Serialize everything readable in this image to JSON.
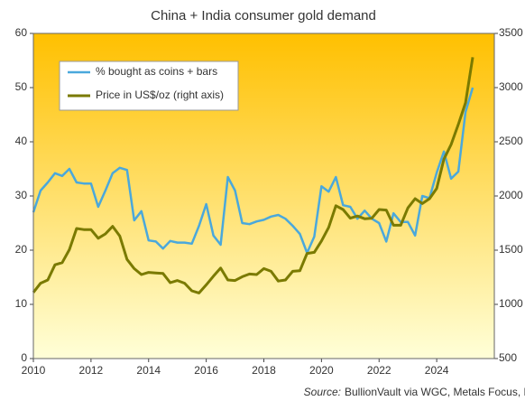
{
  "chart_data": {
    "type": "line",
    "title": "China + India consumer gold demand",
    "source_label": "Source:",
    "source_text": "BullionVault via WGC, Metals Focus, LBMA",
    "x": [
      2010,
      2010.25,
      2010.5,
      2010.75,
      2011,
      2011.25,
      2011.5,
      2011.75,
      2012,
      2012.25,
      2012.5,
      2012.75,
      2013,
      2013.25,
      2013.5,
      2013.75,
      2014,
      2014.25,
      2014.5,
      2014.75,
      2015,
      2015.25,
      2015.5,
      2015.75,
      2016,
      2016.25,
      2016.5,
      2016.75,
      2017,
      2017.25,
      2017.5,
      2017.75,
      2018,
      2018.25,
      2018.5,
      2018.75,
      2019,
      2019.25,
      2019.5,
      2019.75,
      2020,
      2020.25,
      2020.5,
      2020.75,
      2021,
      2021.25,
      2021.5,
      2021.75,
      2022,
      2022.25,
      2022.5,
      2022.75,
      2023,
      2023.25,
      2023.5,
      2023.75,
      2024,
      2024.25,
      2024.5,
      2024.75,
      2025,
      2025.25
    ],
    "series": [
      {
        "name": "% bought as coins + bars",
        "color": "#4aa8dc",
        "axis": "y",
        "values": [
          27,
          31,
          32.5,
          34.2,
          33.7,
          35,
          32.5,
          32.3,
          32.3,
          28,
          31,
          34.2,
          35.2,
          34.8,
          25.5,
          27.2,
          21.8,
          21.6,
          20.3,
          21.7,
          21.4,
          21.4,
          21.2,
          24.5,
          28.5,
          22.7,
          21,
          33.5,
          31,
          25,
          24.8,
          25.3,
          25.6,
          26.2,
          26.5,
          25.8,
          24.5,
          23,
          19.5,
          22.5,
          31.8,
          30.8,
          33.5,
          28.3,
          28,
          25.8,
          27.3,
          25.8,
          25,
          21.6,
          26.8,
          25.2,
          25.2,
          22.7,
          30,
          29.6,
          34.3,
          38.2,
          33.2,
          34.5,
          45.5,
          50
        ]
      },
      {
        "name": "Price in US$/oz (right axis)",
        "color": "#7a7a00",
        "axis": "y2",
        "values": [
          1110,
          1195,
          1225,
          1365,
          1385,
          1505,
          1700,
          1690,
          1690,
          1610,
          1650,
          1720,
          1630,
          1415,
          1330,
          1275,
          1295,
          1290,
          1285,
          1200,
          1220,
          1195,
          1125,
          1105,
          1180,
          1260,
          1335,
          1225,
          1220,
          1255,
          1280,
          1275,
          1330,
          1305,
          1215,
          1225,
          1305,
          1310,
          1470,
          1480,
          1585,
          1710,
          1910,
          1875,
          1795,
          1815,
          1790,
          1795,
          1875,
          1870,
          1730,
          1730,
          1890,
          1975,
          1930,
          1975,
          2070,
          2340,
          2475,
          2660,
          2860,
          3280
        ]
      }
    ],
    "xlim": [
      2010,
      2026
    ],
    "xticks": [
      2010,
      2012,
      2014,
      2016,
      2018,
      2020,
      2022,
      2024
    ],
    "ylim": [
      0,
      60
    ],
    "yticks": [
      0,
      10,
      20,
      30,
      40,
      50,
      60
    ],
    "y2lim": [
      500,
      3500
    ],
    "y2ticks": [
      500,
      1000,
      1500,
      2000,
      2500,
      3000,
      3500
    ],
    "legend": "upper left",
    "grid": false
  }
}
